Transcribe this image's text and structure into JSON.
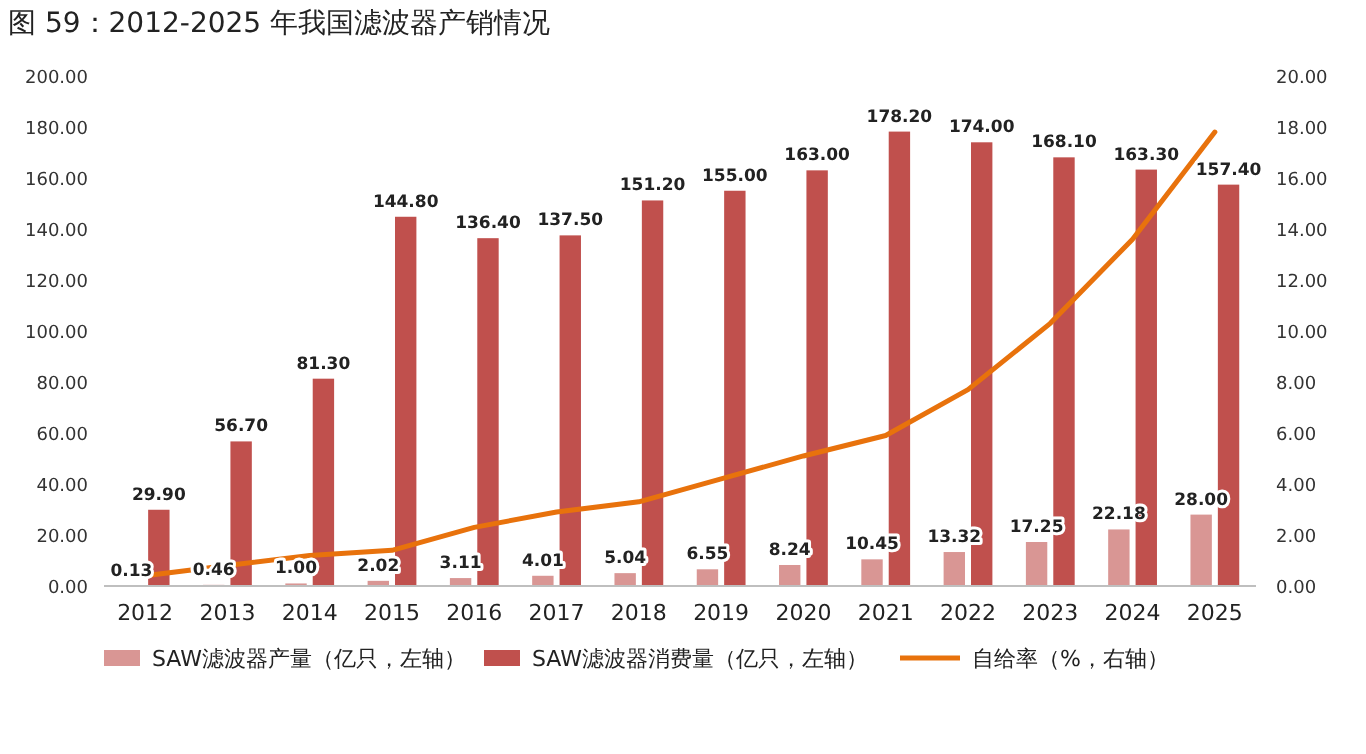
{
  "chart_data": {
    "type": "bar",
    "title": "图 59：2012-2025 年我国滤波器产销情况",
    "categories": [
      "2012",
      "2013",
      "2014",
      "2015",
      "2016",
      "2017",
      "2018",
      "2019",
      "2020",
      "2021",
      "2022",
      "2023",
      "2024",
      "2025"
    ],
    "series": [
      {
        "name": "SAW滤波器产量（亿只，左轴）",
        "color": "#d99694",
        "values": [
          0.13,
          0.46,
          1.0,
          2.02,
          3.11,
          4.01,
          5.04,
          6.55,
          8.24,
          10.45,
          13.32,
          17.25,
          22.18,
          28.0
        ],
        "value_labels": [
          "0.13",
          "0.46",
          "1.00",
          "2.02",
          "3.11",
          "4.01",
          "5.04",
          "6.55",
          "8.24",
          "10.45",
          "13.32",
          "17.25",
          "22.18",
          "28.00"
        ]
      },
      {
        "name": "SAW滤波器消费量（亿只，左轴）",
        "color": "#c0504d",
        "values": [
          29.9,
          56.7,
          81.3,
          144.8,
          136.4,
          137.5,
          151.2,
          155.0,
          163.0,
          178.2,
          174.0,
          168.1,
          163.3,
          157.4
        ],
        "value_labels": [
          "29.90",
          "56.70",
          "81.30",
          "144.80",
          "136.40",
          "137.50",
          "151.20",
          "155.00",
          "163.00",
          "178.20",
          "174.00",
          "168.10",
          "163.30",
          "157.40"
        ]
      },
      {
        "name": "自给率（%，右轴）",
        "type": "line",
        "axis": "y2",
        "color": "#e8720c",
        "values": [
          0.4,
          0.8,
          1.2,
          1.4,
          2.3,
          2.9,
          3.3,
          4.2,
          5.1,
          5.9,
          7.7,
          10.3,
          13.6,
          17.8
        ]
      }
    ],
    "ylim": [
      0,
      200
    ],
    "yticks": [
      {
        "value": 0,
        "label": "0.00"
      },
      {
        "value": 20,
        "label": "20.00"
      },
      {
        "value": 40,
        "label": "40.00"
      },
      {
        "value": 60,
        "label": "60.00"
      },
      {
        "value": 80,
        "label": "80.00"
      },
      {
        "value": 100,
        "label": "100.00"
      },
      {
        "value": 120,
        "label": "120.00"
      },
      {
        "value": 140,
        "label": "140.00"
      },
      {
        "value": 160,
        "label": "160.00"
      },
      {
        "value": 180,
        "label": "180.00"
      },
      {
        "value": 200,
        "label": "200.00"
      }
    ],
    "y2lim": [
      0,
      20
    ],
    "y2ticks": [
      {
        "value": 0,
        "label": "0.00"
      },
      {
        "value": 2,
        "label": "2.00"
      },
      {
        "value": 4,
        "label": "4.00"
      },
      {
        "value": 6,
        "label": "6.00"
      },
      {
        "value": 8,
        "label": "8.00"
      },
      {
        "value": 10,
        "label": "10.00"
      },
      {
        "value": 12,
        "label": "12.00"
      },
      {
        "value": 14,
        "label": "14.00"
      },
      {
        "value": 16,
        "label": "16.00"
      },
      {
        "value": 18,
        "label": "18.00"
      },
      {
        "value": 20,
        "label": "20.00"
      }
    ],
    "legend": "bottom",
    "marker": "none",
    "line_style": "solid"
  }
}
